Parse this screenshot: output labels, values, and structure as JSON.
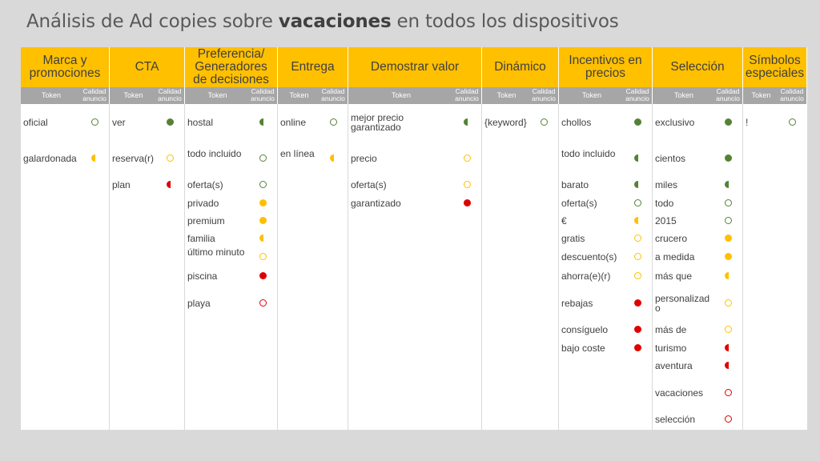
{
  "title": {
    "prefix": "Análisis de Ad copies sobre ",
    "bold": "vacaciones",
    "suffix": " en todos los dispositivos"
  },
  "subheader": {
    "token": "Token",
    "quality": "Calidad anuncio"
  },
  "colors": {
    "green": "#548235",
    "yellow": "#ffc000",
    "red": "#e00000",
    "header": "#ffc000",
    "subheader": "#a6a6a6"
  },
  "columns": [
    {
      "header": "Marca y promociones",
      "items": [
        {
          "token": "oficial",
          "quality": "green-empty"
        },
        {
          "token": "galardonada",
          "quality": "yellow-half"
        }
      ]
    },
    {
      "header": "CTA",
      "items": [
        {
          "token": "ver",
          "quality": "green-full"
        },
        {
          "token": "reserva(r)",
          "quality": "yellow-empty"
        },
        {
          "token": "plan",
          "quality": "red-half"
        }
      ]
    },
    {
      "header": "Preferencia/ Generadores de decisiones",
      "items": [
        {
          "token": "hostal",
          "quality": "green-half"
        },
        {
          "token": "todo incluido",
          "quality": "green-empty"
        },
        {
          "token": "oferta(s)",
          "quality": "green-empty"
        },
        {
          "token": "privado",
          "quality": "yellow-full"
        },
        {
          "token": "premium",
          "quality": "yellow-full"
        },
        {
          "token": "familia",
          "quality": "yellow-half"
        },
        {
          "token": "último minuto",
          "quality": "yellow-empty"
        },
        {
          "token": "piscina",
          "quality": "red-full"
        },
        {
          "token": "playa",
          "quality": "red-empty"
        }
      ]
    },
    {
      "header": "Entrega",
      "items": [
        {
          "token": "online",
          "quality": "green-empty"
        },
        {
          "token": "en línea",
          "quality": "yellow-half"
        }
      ]
    },
    {
      "header": "Demostrar valor",
      "items": [
        {
          "token": "mejor precio garantizado",
          "quality": "green-half"
        },
        {
          "token": "precio",
          "quality": "yellow-empty"
        },
        {
          "token": "oferta(s)",
          "quality": "yellow-empty"
        },
        {
          "token": "garantizado",
          "quality": "red-full"
        }
      ]
    },
    {
      "header": "Dinámico",
      "items": [
        {
          "token": "{keyword}",
          "quality": "green-empty"
        }
      ]
    },
    {
      "header": "Incentivos en precios",
      "items": [
        {
          "token": "chollos",
          "quality": "green-full"
        },
        {
          "token": "todo incluido",
          "quality": "green-half"
        },
        {
          "token": "barato",
          "quality": "green-half"
        },
        {
          "token": "oferta(s)",
          "quality": "green-empty"
        },
        {
          "token": "€",
          "quality": "yellow-half"
        },
        {
          "token": "gratis",
          "quality": "yellow-empty"
        },
        {
          "token": "descuento(s)",
          "quality": "yellow-empty"
        },
        {
          "token": "ahorra(e)(r)",
          "quality": "yellow-empty"
        },
        {
          "token": "rebajas",
          "quality": "red-full"
        },
        {
          "token": "consíguelo",
          "quality": "red-full"
        },
        {
          "token": "bajo coste",
          "quality": "red-full"
        }
      ]
    },
    {
      "header": "Selección",
      "items": [
        {
          "token": "exclusivo",
          "quality": "green-full"
        },
        {
          "token": "cientos",
          "quality": "green-full"
        },
        {
          "token": "miles",
          "quality": "green-half"
        },
        {
          "token": "todo",
          "quality": "green-empty"
        },
        {
          "token": "2015",
          "quality": "green-empty"
        },
        {
          "token": "crucero",
          "quality": "yellow-full"
        },
        {
          "token": "a medida",
          "quality": "yellow-full"
        },
        {
          "token": "más que",
          "quality": "yellow-half"
        },
        {
          "token": "personalizado",
          "quality": "yellow-empty"
        },
        {
          "token": "más de",
          "quality": "yellow-empty"
        },
        {
          "token": "turismo",
          "quality": "red-half"
        },
        {
          "token": "aventura",
          "quality": "red-half"
        },
        {
          "token": "vacaciones",
          "quality": "red-empty"
        },
        {
          "token": "selección",
          "quality": "red-empty"
        }
      ]
    },
    {
      "header": "Símbolos especiales",
      "items": [
        {
          "token": "!",
          "quality": "green-empty"
        }
      ]
    }
  ]
}
